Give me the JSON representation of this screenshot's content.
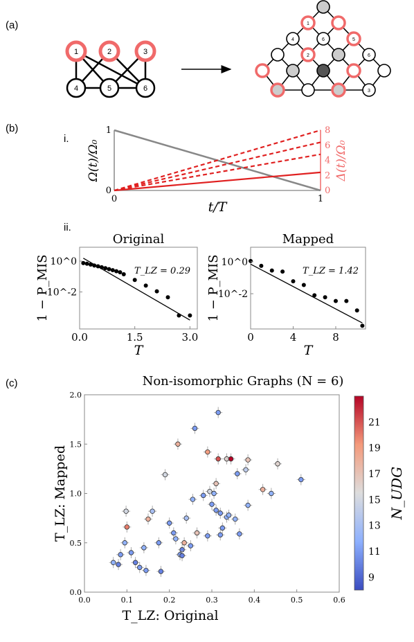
{
  "panels": {
    "a": "(a)",
    "b": "(b)",
    "c": "(c)",
    "b_i": "i.",
    "b_ii": "ii."
  },
  "graph_original": {
    "top_nodes": [
      "1",
      "2",
      "3"
    ],
    "bottom_nodes": [
      "4",
      "5",
      "6"
    ]
  },
  "graph_mapped": {
    "node_labels": [
      "1",
      "2",
      "3",
      "4",
      "5",
      "6",
      "6"
    ]
  },
  "colors": {
    "highlight": "#f06a6a",
    "gray": "#888888",
    "red": "#e02020"
  },
  "chart_data": [
    {
      "id": "schedule",
      "type": "line",
      "xlabel": "t/T",
      "ylabel_left": "Ω(t)/Ω₀",
      "ylabel_right": "Δ(t)/Ω₀",
      "x_ticks": [
        "0",
        "1"
      ],
      "y_left_ticks": [
        "0",
        "1"
      ],
      "y_right_ticks": [
        "0",
        "2",
        "4",
        "6",
        "8"
      ],
      "series": [
        {
          "values": [
            [
              0,
              1
            ],
            [
              1,
              0
            ]
          ],
          "axis": "left",
          "style": "solid",
          "color": "#888888"
        },
        {
          "values": [
            [
              0,
              0
            ],
            [
              1,
              2.4
            ]
          ],
          "axis": "right",
          "style": "solid",
          "color": "#e02020"
        },
        {
          "values": [
            [
              0,
              0
            ],
            [
              1,
              4.8
            ]
          ],
          "axis": "right",
          "style": "dashed",
          "color": "#e02020"
        },
        {
          "values": [
            [
              0,
              0
            ],
            [
              1,
              6.4
            ]
          ],
          "axis": "right",
          "style": "dashed",
          "color": "#e02020"
        },
        {
          "values": [
            [
              0,
              0
            ],
            [
              1,
              8
            ]
          ],
          "axis": "right",
          "style": "dashed",
          "color": "#e02020"
        }
      ]
    },
    {
      "id": "original",
      "type": "scatter",
      "title": "Original",
      "xlabel": "T",
      "ylabel": "1 − P_MIS",
      "annotation": "T_LZ = 0.29",
      "x_ticks": [
        "0.0",
        "1.5",
        "3.0"
      ],
      "y_ticks": [
        "10^0",
        "10^-2"
      ],
      "xlim": [
        0,
        3.2
      ],
      "ylog": true,
      "ylim_exp": [
        -4.4,
        0.9
      ],
      "points": [
        [
          0.1,
          0.75
        ],
        [
          0.2,
          0.68
        ],
        [
          0.3,
          0.6
        ],
        [
          0.4,
          0.52
        ],
        [
          0.5,
          0.46
        ],
        [
          0.6,
          0.4
        ],
        [
          0.7,
          0.35
        ],
        [
          0.8,
          0.3
        ],
        [
          0.9,
          0.26
        ],
        [
          1.0,
          0.22
        ],
        [
          1.1,
          0.19
        ],
        [
          1.2,
          0.14
        ],
        [
          1.5,
          0.06
        ],
        [
          1.8,
          0.026
        ],
        [
          2.1,
          0.011
        ],
        [
          2.4,
          0.0045
        ],
        [
          2.7,
          0.0003
        ],
        [
          3.0,
          0.0003
        ]
      ],
      "fit_line": [
        [
          0.1,
          1.55
        ],
        [
          3.0,
          0.00015
        ]
      ]
    },
    {
      "id": "mapped",
      "type": "scatter",
      "title": "Mapped",
      "xlabel": "T",
      "ylabel": "1 − P_MIS",
      "annotation": "T_LZ = 1.42",
      "x_ticks": [
        "0",
        "4",
        "8"
      ],
      "y_ticks": [
        "10^0",
        "10^-2"
      ],
      "xlim": [
        0,
        10.8
      ],
      "ylog": true,
      "ylim_exp": [
        -4.2,
        0.9
      ],
      "points": [
        [
          0,
          1.1
        ],
        [
          1,
          0.55
        ],
        [
          2,
          0.28
        ],
        [
          3,
          0.24
        ],
        [
          4,
          0.06
        ],
        [
          5,
          0.035
        ],
        [
          6,
          0.008
        ],
        [
          7,
          0.006
        ],
        [
          8,
          0.0035
        ],
        [
          9,
          0.0035
        ],
        [
          10,
          0.0009
        ],
        [
          10.5,
          0.0001
        ]
      ],
      "fit_line": [
        [
          0,
          0.7
        ],
        [
          10.5,
          0.00015
        ]
      ]
    },
    {
      "id": "nonisomorphic",
      "type": "scatter",
      "title": "Non-isomorphic Graphs (N = 6)",
      "xlabel": "T_LZ: Original",
      "ylabel": "T_LZ: Mapped",
      "x_ticks": [
        "0.0",
        "0.1",
        "0.2",
        "0.3",
        "0.4",
        "0.5",
        "0.6"
      ],
      "y_ticks": [
        "0.0",
        "0.5",
        "1.0",
        "1.5",
        "2.0"
      ],
      "xlim": [
        0,
        0.6
      ],
      "ylim": [
        0,
        2.0
      ],
      "colorbar": {
        "label": "N_UDG",
        "ticks": [
          "9",
          "11",
          "13",
          "15",
          "17",
          "19",
          "21"
        ],
        "range": [
          8,
          23
        ]
      },
      "points": [
        [
          0.068,
          0.3,
          12
        ],
        [
          0.08,
          0.28,
          10
        ],
        [
          0.085,
          0.38,
          11
        ],
        [
          0.095,
          0.5,
          12
        ],
        [
          0.098,
          0.82,
          15
        ],
        [
          0.1,
          0.66,
          20
        ],
        [
          0.11,
          0.4,
          11
        ],
        [
          0.12,
          0.3,
          10
        ],
        [
          0.13,
          0.25,
          11
        ],
        [
          0.14,
          0.45,
          12
        ],
        [
          0.145,
          0.22,
          11
        ],
        [
          0.15,
          0.74,
          18
        ],
        [
          0.16,
          0.82,
          13
        ],
        [
          0.175,
          0.5,
          11
        ],
        [
          0.18,
          0.21,
          10
        ],
        [
          0.19,
          1.19,
          15
        ],
        [
          0.2,
          0.7,
          11
        ],
        [
          0.21,
          0.6,
          11
        ],
        [
          0.215,
          0.54,
          12
        ],
        [
          0.22,
          1.5,
          18
        ],
        [
          0.225,
          0.38,
          11
        ],
        [
          0.23,
          0.43,
          10
        ],
        [
          0.23,
          0.37,
          10
        ],
        [
          0.235,
          0.5,
          18
        ],
        [
          0.24,
          0.75,
          13
        ],
        [
          0.25,
          0.47,
          11
        ],
        [
          0.255,
          0.94,
          12
        ],
        [
          0.26,
          1.66,
          11
        ],
        [
          0.265,
          0.6,
          17
        ],
        [
          0.28,
          0.98,
          11
        ],
        [
          0.29,
          1.42,
          19
        ],
        [
          0.29,
          0.57,
          11
        ],
        [
          0.295,
          1.02,
          15
        ],
        [
          0.3,
          0.89,
          11
        ],
        [
          0.305,
          1.0,
          12
        ],
        [
          0.31,
          0.83,
          11
        ],
        [
          0.31,
          1.1,
          17
        ],
        [
          0.315,
          1.35,
          21
        ],
        [
          0.315,
          1.82,
          11
        ],
        [
          0.32,
          0.8,
          11
        ],
        [
          0.32,
          0.58,
          11
        ],
        [
          0.325,
          0.65,
          11
        ],
        [
          0.335,
          1.35,
          16
        ],
        [
          0.335,
          0.76,
          12
        ],
        [
          0.34,
          0.78,
          12
        ],
        [
          0.345,
          1.35,
          23
        ],
        [
          0.355,
          0.74,
          12
        ],
        [
          0.36,
          1.2,
          11
        ],
        [
          0.365,
          0.59,
          11
        ],
        [
          0.38,
          1.24,
          14
        ],
        [
          0.385,
          0.88,
          12
        ],
        [
          0.385,
          1.34,
          17
        ],
        [
          0.42,
          1.04,
          18
        ],
        [
          0.44,
          1.0,
          12
        ],
        [
          0.455,
          1.3,
          16
        ],
        [
          0.51,
          1.14,
          11
        ]
      ]
    }
  ]
}
